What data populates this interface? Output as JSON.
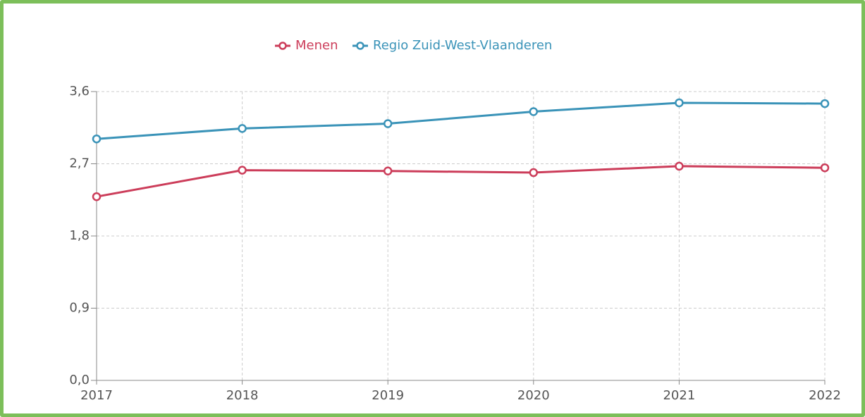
{
  "chart_data": {
    "type": "line",
    "categories": [
      "2017",
      "2018",
      "2019",
      "2020",
      "2021",
      "2022"
    ],
    "series": [
      {
        "name": "Menen",
        "color": "#cc3d5a",
        "values": [
          2.29,
          2.62,
          2.61,
          2.59,
          2.67,
          2.65
        ]
      },
      {
        "name": "Regio Zuid-West-Vlaanderen",
        "color": "#3a93b8",
        "values": [
          3.01,
          3.14,
          3.2,
          3.35,
          3.46,
          3.45
        ]
      }
    ],
    "ylim": [
      0,
      3.6
    ],
    "yticks": [
      {
        "value": 0,
        "label": "0,0"
      },
      {
        "value": 0.9,
        "label": "0,9"
      },
      {
        "value": 1.8,
        "label": "1,8"
      },
      {
        "value": 2.7,
        "label": "2,7"
      },
      {
        "value": 3.6,
        "label": "3,6"
      }
    ],
    "grid": true,
    "legend": "top"
  }
}
